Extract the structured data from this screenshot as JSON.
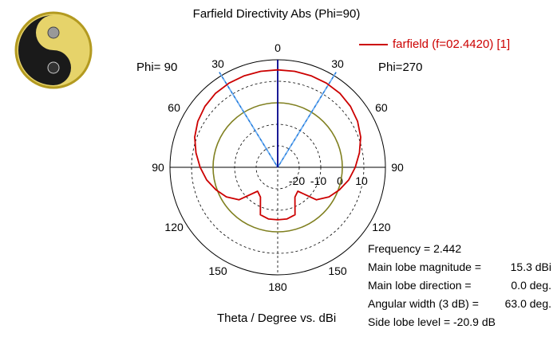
{
  "header": {
    "title": "Farfield Directivity Abs (Phi=90)",
    "phi_left": "Phi= 90",
    "phi_right": "Phi=270",
    "xlabel": "Theta / Degree vs. dBi"
  },
  "legend": {
    "label": "farfield (f=02.4420) [1]",
    "color": "#cc0000"
  },
  "info": {
    "frequency": "Frequency = 2.442",
    "rows": [
      {
        "key": "Main lobe magnitude =",
        "value": "15.3 dBi"
      },
      {
        "key": "Main lobe direction =",
        "value": "0.0 deg."
      },
      {
        "key": "Angular width (3 dB) =",
        "value": "63.0 deg."
      }
    ],
    "sidelobe": "Side lobe level = -20.9 dB"
  },
  "logo": {
    "name": "yin-yang-logo-icon"
  },
  "chart_data": {
    "type": "polar",
    "angle_ticks": [
      {
        "deg": 0,
        "label": "0"
      },
      {
        "deg": 30,
        "label": "30"
      },
      {
        "deg": 60,
        "label": "60"
      },
      {
        "deg": 90,
        "label": "90"
      },
      {
        "deg": 120,
        "label": "120"
      },
      {
        "deg": 150,
        "label": "150"
      },
      {
        "deg": 180,
        "label": "180"
      },
      {
        "deg": -150,
        "label": "150"
      },
      {
        "deg": -120,
        "label": "120"
      },
      {
        "deg": -90,
        "label": "90"
      },
      {
        "deg": -60,
        "label": "60"
      },
      {
        "deg": -30,
        "label": "30"
      }
    ],
    "radial_ticks": [
      "-20",
      "-10",
      "0",
      "10"
    ],
    "r_range_db": [
      -30,
      20
    ],
    "main_lobe_direction_deg": 0,
    "beamwidth_edges_deg": [
      -31.5,
      31.5
    ],
    "reference_ring_db": 0,
    "series": [
      {
        "name": "farfield (f=02.4420) [1]",
        "color": "#cc0000",
        "theta_deg": [
          -180,
          -170,
          -160,
          -150,
          -140,
          -130,
          -120,
          -110,
          -100,
          -90,
          -80,
          -70,
          -60,
          -50,
          -40,
          -30,
          -20,
          -10,
          0,
          10,
          20,
          30,
          40,
          50,
          60,
          70,
          80,
          90,
          100,
          110,
          120,
          130,
          140,
          150,
          160,
          170,
          180
        ],
        "gain_db": [
          -5.6,
          -5.6,
          -6.5,
          -14,
          -15.5,
          -6.5,
          -2.5,
          0.5,
          3.5,
          6,
          8.5,
          11,
          12.8,
          14.1,
          14.9,
          15.2,
          15.3,
          15.3,
          15.3,
          15.3,
          15.3,
          15.2,
          14.9,
          14.1,
          12.8,
          11,
          8.5,
          6,
          3.5,
          0.5,
          -2.5,
          -6.5,
          -15.5,
          -14,
          -6.5,
          -5.6,
          -5.6
        ]
      }
    ]
  }
}
